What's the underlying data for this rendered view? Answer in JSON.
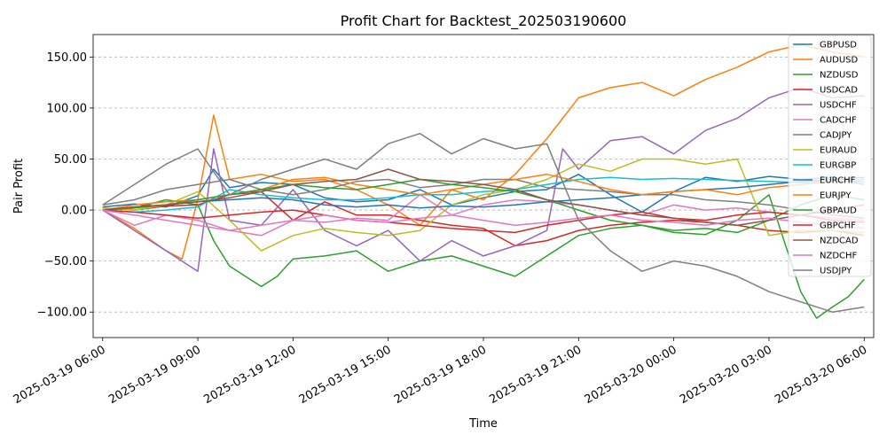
{
  "chart_data": {
    "type": "line",
    "title": "Profit Chart for Backtest_202503190600",
    "xlabel": "Time",
    "ylabel": "Pair Profit",
    "grid": true,
    "legend_position": "top-right",
    "xlim": [
      -0.3,
      24.3
    ],
    "ylim": [
      -125,
      172
    ],
    "y_ticks": [
      -100,
      -50,
      0,
      50,
      100,
      150
    ],
    "y_tick_labels": [
      "−100.00",
      "−50.00",
      "0.00",
      "50.00",
      "100.00",
      "150.00"
    ],
    "x_ticks": [
      0,
      3,
      6,
      9,
      12,
      15,
      18,
      21,
      24
    ],
    "x_tick_labels": [
      "2025-03-19 06:00",
      "2025-03-19 09:00",
      "2025-03-19 12:00",
      "2025-03-19 15:00",
      "2025-03-19 18:00",
      "2025-03-19 21:00",
      "2025-03-20 00:00",
      "2025-03-20 03:00",
      "2025-03-20 06:00"
    ],
    "x_unit": "hours since 2025-03-19 06:00",
    "series": [
      {
        "name": "GBPUSD",
        "color": "#1f77b4",
        "x": [
          0,
          1,
          2,
          3,
          3.5,
          4,
          5,
          6,
          7,
          8,
          9,
          10,
          11,
          12,
          13,
          14,
          15,
          16,
          17,
          18,
          19,
          20,
          21,
          22,
          23,
          24
        ],
        "y": [
          3,
          6,
          3,
          14,
          40,
          22,
          27,
          25,
          12,
          8,
          10,
          20,
          5,
          12,
          18,
          20,
          35,
          15,
          -2,
          18,
          32,
          28,
          33,
          30,
          32,
          25
        ]
      },
      {
        "name": "AUDUSD",
        "color": "#ff7f0e",
        "x": [
          0,
          1,
          2,
          2.5,
          3,
          3.5,
          4,
          5,
          6,
          7,
          8,
          9,
          10,
          11,
          12,
          13,
          14,
          15,
          16,
          17,
          18,
          19,
          20,
          21,
          22,
          23,
          24
        ],
        "y": [
          0,
          -18,
          -40,
          -48,
          10,
          93,
          30,
          35,
          28,
          30,
          20,
          5,
          -15,
          20,
          10,
          35,
          70,
          110,
          120,
          125,
          112,
          128,
          140,
          155,
          162,
          155,
          150
        ]
      },
      {
        "name": "NZDUSD",
        "color": "#2ca02c",
        "x": [
          0,
          1,
          2,
          3,
          3.5,
          4,
          5,
          5.5,
          6,
          7,
          8,
          9,
          10,
          11,
          12,
          13,
          14,
          15,
          16,
          17,
          18,
          19,
          20,
          21,
          22,
          22.5,
          23,
          23.5,
          24
        ],
        "y": [
          0,
          2,
          10,
          5,
          -30,
          -55,
          -75,
          -65,
          -48,
          -45,
          -40,
          -60,
          -50,
          -45,
          -55,
          -65,
          -45,
          -25,
          -18,
          -15,
          -22,
          -24,
          -10,
          15,
          -80,
          -106,
          -95,
          -85,
          -68
        ]
      },
      {
        "name": "USDCAD",
        "color": "#d62728",
        "x": [
          0,
          1,
          2,
          3,
          4,
          5,
          6,
          7,
          8,
          9,
          10,
          11,
          12,
          13,
          14,
          15,
          16,
          17,
          18,
          19,
          20,
          21,
          22,
          23,
          24
        ],
        "y": [
          2,
          0,
          4,
          5,
          15,
          18,
          -10,
          8,
          -5,
          -5,
          -10,
          -15,
          -18,
          -35,
          -30,
          -20,
          -15,
          -12,
          -10,
          -12,
          -15,
          -20,
          -22,
          -20,
          -25
        ]
      },
      {
        "name": "USDCHF",
        "color": "#9467bd",
        "x": [
          0,
          1,
          2,
          3,
          3.5,
          4,
          5,
          6,
          7,
          8,
          9,
          10,
          11,
          12,
          13,
          14,
          14.5,
          15,
          16,
          17,
          18,
          19,
          20,
          21,
          22,
          23,
          24
        ],
        "y": [
          0,
          -20,
          -40,
          -60,
          60,
          -10,
          -15,
          20,
          -20,
          -35,
          -20,
          -50,
          -30,
          -45,
          -35,
          -20,
          60,
          40,
          68,
          72,
          55,
          78,
          90,
          110,
          120,
          110,
          112
        ]
      },
      {
        "name": "CADCHF",
        "color": "#e377c2",
        "x": [
          0,
          1,
          2,
          3,
          4,
          5,
          6,
          7,
          8,
          9,
          10,
          11,
          12,
          13,
          14,
          15,
          16,
          17,
          18,
          19,
          20,
          21,
          22,
          23,
          24
        ],
        "y": [
          0,
          -15,
          -5,
          -10,
          -20,
          -25,
          -10,
          -12,
          -8,
          -10,
          15,
          -5,
          5,
          10,
          8,
          5,
          0,
          -5,
          5,
          0,
          2,
          -2,
          -5,
          -8,
          -10
        ]
      },
      {
        "name": "CADJPY",
        "color": "#7f7f7f",
        "x": [
          0,
          1,
          2,
          3,
          4,
          5,
          6,
          7,
          8,
          9,
          10,
          11,
          12,
          13,
          14,
          15,
          16,
          17,
          18,
          19,
          20,
          21,
          22,
          23,
          24
        ],
        "y": [
          5,
          10,
          20,
          25,
          30,
          20,
          15,
          20,
          28,
          30,
          22,
          25,
          30,
          30,
          22,
          20,
          18,
          15,
          15,
          10,
          8,
          5,
          0,
          -5,
          -8
        ]
      },
      {
        "name": "EURAUD",
        "color": "#bcbd22",
        "x": [
          0,
          1,
          2,
          3,
          4,
          5,
          6,
          7,
          8,
          9,
          10,
          11,
          12,
          13,
          14,
          15,
          16,
          17,
          18,
          19,
          20,
          21,
          22,
          23,
          24
        ],
        "y": [
          2,
          0,
          5,
          18,
          -10,
          -40,
          -25,
          -18,
          -22,
          -25,
          -20,
          5,
          15,
          20,
          30,
          45,
          38,
          50,
          50,
          45,
          50,
          -25,
          -20,
          -20,
          -22
        ]
      },
      {
        "name": "EURGBP",
        "color": "#17becf",
        "x": [
          0,
          1,
          2,
          3,
          4,
          5,
          6,
          7,
          8,
          9,
          10,
          11,
          12,
          13,
          14,
          15,
          16,
          17,
          18,
          19,
          20,
          21,
          22,
          23,
          24
        ],
        "y": [
          0,
          -2,
          0,
          3,
          20,
          15,
          12,
          10,
          10,
          12,
          15,
          15,
          18,
          20,
          25,
          30,
          32,
          30,
          31,
          30,
          29,
          28,
          27,
          28,
          28
        ]
      },
      {
        "name": "EURCHF",
        "color": "#1f77b4",
        "x": [
          0,
          1,
          2,
          3,
          4,
          5,
          6,
          7,
          8,
          9,
          10,
          11,
          12,
          13,
          14,
          15,
          16,
          17,
          18,
          19,
          20,
          21,
          22,
          23,
          24
        ],
        "y": [
          0,
          3,
          5,
          8,
          10,
          12,
          10,
          5,
          3,
          5,
          2,
          4,
          3,
          5,
          8,
          10,
          12,
          15,
          18,
          20,
          22,
          25,
          28,
          30,
          32
        ]
      },
      {
        "name": "EURJPY",
        "color": "#ff7f0e",
        "x": [
          0,
          1,
          2,
          3,
          4,
          5,
          6,
          7,
          8,
          9,
          10,
          11,
          12,
          13,
          14,
          15,
          16,
          17,
          18,
          19,
          20,
          21,
          22,
          23,
          24
        ],
        "y": [
          0,
          5,
          8,
          10,
          15,
          20,
          30,
          32,
          25,
          20,
          15,
          20,
          25,
          30,
          35,
          28,
          20,
          15,
          18,
          20,
          15,
          22,
          25,
          28,
          30
        ]
      },
      {
        "name": "GBPAUD",
        "color": "#2ca02c",
        "x": [
          0,
          1,
          2,
          3,
          4,
          5,
          6,
          7,
          8,
          9,
          10,
          11,
          12,
          13,
          14,
          15,
          16,
          17,
          18,
          19,
          20,
          21,
          22,
          23,
          24
        ],
        "y": [
          0,
          2,
          5,
          10,
          15,
          20,
          25,
          22,
          20,
          25,
          30,
          25,
          22,
          18,
          10,
          0,
          -10,
          -15,
          -20,
          -18,
          -22,
          -10,
          5,
          15,
          10
        ]
      },
      {
        "name": "GBPCHF",
        "color": "#d62728",
        "x": [
          0,
          1,
          2,
          3,
          4,
          5,
          6,
          7,
          8,
          9,
          10,
          11,
          12,
          13,
          14,
          15,
          16,
          17,
          18,
          19,
          20,
          21,
          22,
          23,
          24
        ],
        "y": [
          0,
          -2,
          -5,
          -8,
          -5,
          -2,
          0,
          -5,
          -10,
          -12,
          -15,
          -18,
          -20,
          -22,
          -15,
          -10,
          -5,
          -2,
          -8,
          -10,
          -5,
          -2,
          -5,
          -10,
          -12
        ]
      },
      {
        "name": "NZDCAD",
        "color": "#8c564b",
        "x": [
          0,
          1,
          2,
          3,
          4,
          5,
          6,
          7,
          8,
          9,
          10,
          11,
          12,
          13,
          14,
          15,
          16,
          17,
          18,
          19,
          20,
          21,
          22,
          23,
          24
        ],
        "y": [
          0,
          3,
          5,
          8,
          12,
          18,
          25,
          28,
          30,
          40,
          30,
          28,
          25,
          20,
          10,
          5,
          0,
          -5,
          -8,
          -12,
          -15,
          -10,
          -5,
          0,
          5
        ]
      },
      {
        "name": "NZDCHF",
        "color": "#e377c2",
        "x": [
          0,
          1,
          2,
          3,
          4,
          5,
          6,
          7,
          8,
          9,
          10,
          11,
          12,
          13,
          14,
          15,
          16,
          17,
          18,
          19,
          20,
          21,
          22,
          23,
          24
        ],
        "y": [
          0,
          -5,
          -10,
          -15,
          -20,
          -15,
          -10,
          -5,
          -10,
          -12,
          -8,
          -5,
          -10,
          -15,
          -12,
          -8,
          -5,
          -10,
          -12,
          -15,
          -10,
          -8,
          -12,
          -15,
          -18
        ]
      },
      {
        "name": "USDJPY",
        "color": "#7f7f7f",
        "x": [
          0,
          1,
          2,
          3,
          4,
          5,
          6,
          7,
          8,
          9,
          10,
          11,
          12,
          13,
          14,
          15,
          16,
          17,
          18,
          19,
          20,
          21,
          22,
          23,
          24
        ],
        "y": [
          5,
          25,
          45,
          60,
          15,
          30,
          40,
          50,
          40,
          65,
          75,
          55,
          70,
          60,
          65,
          -10,
          -40,
          -60,
          -50,
          -55,
          -65,
          -80,
          -90,
          -100,
          -95
        ]
      }
    ]
  }
}
